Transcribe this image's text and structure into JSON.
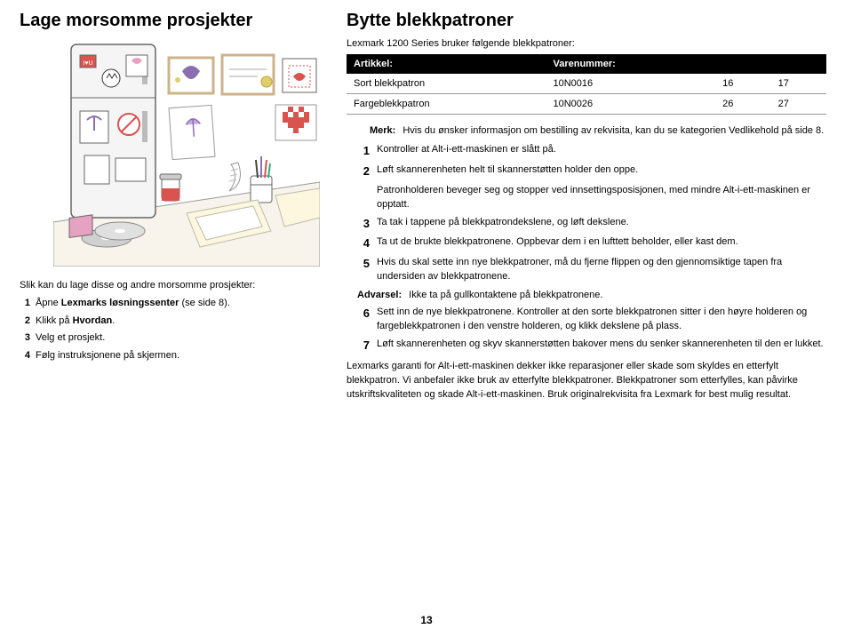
{
  "left": {
    "title": "Lage morsomme prosjekter",
    "intro": "Slik kan du lage disse og andre morsomme prosjekter:",
    "steps": [
      "Åpne Lexmarks løsningssenter (se side 8).",
      "Klikk på Hvordan.",
      "Velg et prosjekt.",
      "Følg instruksjonene på skjermen."
    ]
  },
  "right": {
    "title": "Bytte blekkpatroner",
    "intro": "Lexmark 1200 Series bruker følgende blekkpatroner:",
    "table": {
      "headers": [
        "Artikkel:",
        "Varenummer:",
        "",
        ""
      ],
      "rows": [
        [
          "Sort blekkpatron",
          "10N0016",
          "16",
          "17"
        ],
        [
          "Fargeblekkpatron",
          "10N0026",
          "26",
          "27"
        ]
      ]
    },
    "note_label": "Merk:",
    "note_text": "Hvis du ønsker informasjon om bestilling av rekvisita, kan du se kategorien Vedlikehold på side 8.",
    "steps_a": [
      "Kontroller at Alt-i-ett-maskinen er slått på.",
      "Løft skannerenheten helt til skannerstøtten holder den oppe."
    ],
    "sub_a": "Patronholderen beveger seg og stopper ved innsettingsposisjonen, med mindre Alt-i-ett-maskinen er opptatt.",
    "steps_b": [
      "Ta tak i tappene på blekkpatrondekslene, og løft dekslene.",
      "Ta ut de brukte blekkpatronene. Oppbevar dem i en lufttett beholder, eller kast dem.",
      "Hvis du skal sette inn nye blekkpatroner, må du fjerne flippen og den gjennomsiktige tapen fra undersiden av blekkpatronene."
    ],
    "warn_label": "Advarsel:",
    "warn_text": "Ikke ta på gullkontaktene på blekkpatronene.",
    "steps_c": [
      "Sett inn de nye blekkpatronene. Kontroller at den sorte blekkpatronen sitter i den høyre holderen og fargeblekkpatronen i den venstre holderen, og klikk dekslene på plass.",
      "Løft skannerenheten og skyv skannerstøtten bakover mens du senker skannerenheten til den er lukket."
    ],
    "bottom": "Lexmarks garanti for Alt-i-ett-maskinen dekker ikke reparasjoner eller skade som skyldes en etterfylt blekkpatron. Vi anbefaler ikke bruk av etterfylte blekkpatroner. Blekkpatroner som etterfylles, kan påvirke utskriftskvaliteten og skade Alt-i-ett-maskinen. Bruk originalrekvisita fra Lexmark for best mulig resultat."
  },
  "page_number": "13",
  "illustration": {
    "bg": "#ffffff",
    "fridge": "#f5f5f5",
    "outline": "#555555",
    "frame": "#cdb38b",
    "teal": "#8fc5c7",
    "red": "#d9534f",
    "purple": "#8b6eb0",
    "blue": "#93b9e0",
    "pink": "#e6a2c1",
    "yellow": "#e0cf6f",
    "disc": "#d0d0d0"
  }
}
